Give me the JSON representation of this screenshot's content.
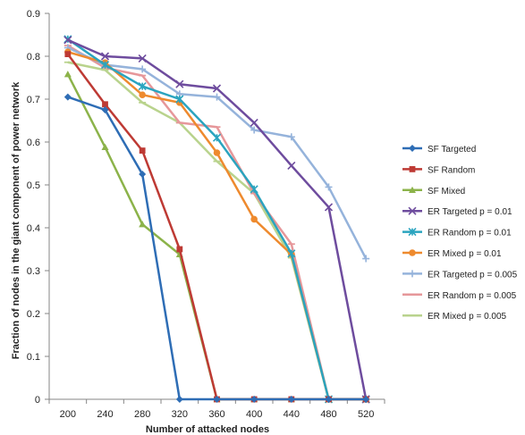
{
  "chart_data": {
    "type": "line",
    "title": "",
    "xlabel": "Number of attacked nodes",
    "ylabel": "Fraction of nodes in the giant component of power network",
    "x": [
      200,
      240,
      280,
      320,
      360,
      400,
      440,
      480,
      520
    ],
    "ylim": [
      0,
      0.9
    ],
    "yticks": [
      "0",
      "0.1",
      "0.2",
      "0.3",
      "0.4",
      "0.5",
      "0.6",
      "0.7",
      "0.8",
      "0.9"
    ],
    "grid": false,
    "legend_position": "right",
    "series": [
      {
        "name": "SF Targeted",
        "color": "#2E6DB5",
        "marker": "diamond",
        "values": [
          0.705,
          0.675,
          0.525,
          0,
          0,
          0,
          0,
          0,
          0
        ]
      },
      {
        "name": "SF Random",
        "color": "#BE3A34",
        "marker": "square",
        "values": [
          0.805,
          0.688,
          0.58,
          0.35,
          0,
          0,
          0,
          0,
          0
        ]
      },
      {
        "name": "SF Mixed",
        "color": "#8CB34A",
        "marker": "triangle",
        "values": [
          0.758,
          0.588,
          0.408,
          0.338,
          0,
          0,
          0,
          0,
          0
        ]
      },
      {
        "name": "ER Targeted p = 0.01",
        "color": "#6E4C9E",
        "marker": "x",
        "values": [
          0.838,
          0.8,
          0.795,
          0.735,
          0.725,
          0.645,
          0.545,
          0.448,
          0
        ]
      },
      {
        "name": "ER Random p = 0.01",
        "color": "#2AA4BF",
        "marker": "star",
        "values": [
          0.84,
          0.78,
          0.73,
          0.7,
          0.61,
          0.49,
          0.34,
          0,
          0
        ]
      },
      {
        "name": "ER Mixed p = 0.01",
        "color": "#EE8A2E",
        "marker": "circle",
        "values": [
          0.81,
          0.785,
          0.71,
          0.692,
          0.575,
          0.42,
          0.338,
          0,
          0
        ]
      },
      {
        "name": "ER Targeted p = 0.005",
        "color": "#95B3DB",
        "marker": "plus",
        "values": [
          0.82,
          0.78,
          0.77,
          0.712,
          0.705,
          0.628,
          0.612,
          0.495,
          0.328
        ]
      },
      {
        "name": "ER Random p = 0.005",
        "color": "#E6979A",
        "marker": "dash",
        "values": [
          0.825,
          0.773,
          0.755,
          0.645,
          0.635,
          0.48,
          0.362,
          0,
          0
        ]
      },
      {
        "name": "ER Mixed p = 0.005",
        "color": "#B9D38D",
        "marker": "dash",
        "values": [
          0.786,
          0.768,
          0.692,
          0.645,
          0.555,
          0.48,
          0.33,
          0,
          0
        ]
      }
    ]
  }
}
